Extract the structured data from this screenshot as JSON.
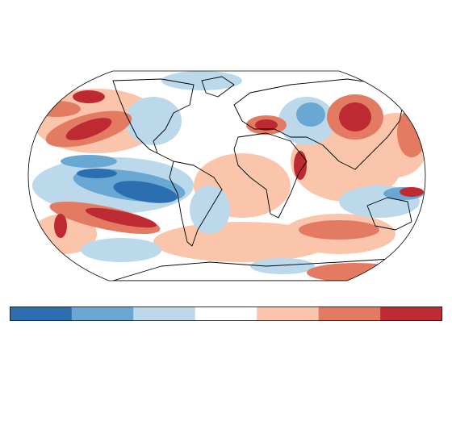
{
  "colorbar": {
    "colors": [
      "#2c6fb0",
      "#6aa8d4",
      "#bcd9ec",
      "#ffffff",
      "#fbc5ab",
      "#e27b62",
      "#be2a32"
    ]
  }
}
